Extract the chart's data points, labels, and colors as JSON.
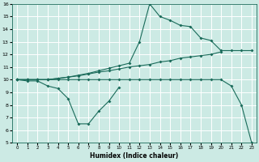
{
  "xlabel": "Humidex (Indice chaleur)",
  "xlim": [
    -0.5,
    23.5
  ],
  "ylim": [
    5,
    16
  ],
  "bg_color": "#cceae4",
  "line_color": "#1a6b5a",
  "grid_color": "#ffffff",
  "line1_dip": {
    "x": [
      0,
      1,
      2,
      3,
      4,
      5,
      6,
      7,
      8,
      9,
      10
    ],
    "y": [
      10,
      9.9,
      9.9,
      9.5,
      9.3,
      8.5,
      6.5,
      6.5,
      7.5,
      8.3,
      9.4
    ]
  },
  "line2_flat_drop": {
    "x": [
      0,
      1,
      2,
      3,
      4,
      5,
      6,
      7,
      8,
      9,
      10,
      11,
      12,
      13,
      14,
      15,
      16,
      17,
      18,
      19,
      20,
      21,
      22,
      23
    ],
    "y": [
      10,
      10,
      10,
      10,
      10,
      10,
      10,
      10,
      10,
      10,
      10,
      10,
      10,
      10,
      10,
      10,
      10,
      10,
      10,
      10,
      10,
      9.5,
      8.0,
      5.0
    ]
  },
  "line3_gradual": {
    "x": [
      0,
      1,
      2,
      3,
      4,
      5,
      6,
      7,
      8,
      9,
      10,
      11,
      12,
      13,
      14,
      15,
      16,
      17,
      18,
      19,
      20
    ],
    "y": [
      10,
      10,
      10,
      10,
      10.1,
      10.2,
      10.3,
      10.45,
      10.6,
      10.7,
      10.85,
      11.0,
      11.1,
      11.2,
      11.4,
      11.5,
      11.7,
      11.8,
      11.9,
      12.0,
      12.2
    ]
  },
  "line4_peak": {
    "x": [
      0,
      1,
      2,
      3,
      4,
      5,
      6,
      7,
      8,
      9,
      10,
      11,
      12,
      13,
      14,
      15,
      16,
      17,
      18,
      19,
      20,
      21,
      22,
      23
    ],
    "y": [
      10,
      10,
      10,
      10,
      10.1,
      10.2,
      10.35,
      10.5,
      10.7,
      10.9,
      11.1,
      11.3,
      13.0,
      16.0,
      15.0,
      14.7,
      14.3,
      14.2,
      13.3,
      13.1,
      12.3,
      12.3,
      12.3,
      12.3
    ]
  },
  "xticks": [
    0,
    1,
    2,
    3,
    4,
    5,
    6,
    7,
    8,
    9,
    10,
    11,
    12,
    13,
    14,
    15,
    16,
    17,
    18,
    19,
    20,
    21,
    22,
    23
  ],
  "yticks": [
    5,
    6,
    7,
    8,
    9,
    10,
    11,
    12,
    13,
    14,
    15,
    16
  ]
}
